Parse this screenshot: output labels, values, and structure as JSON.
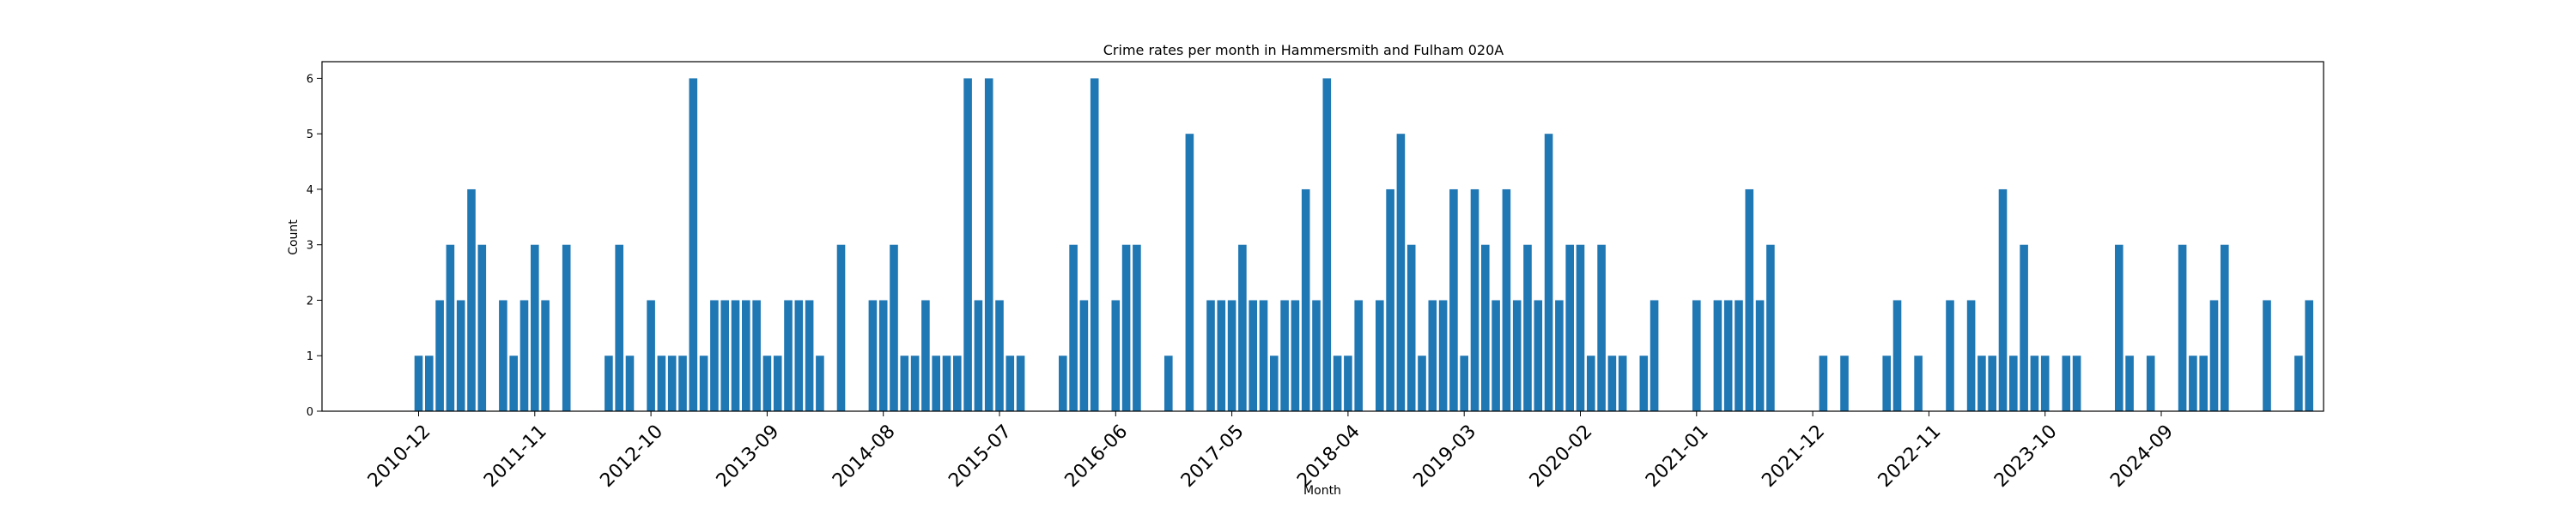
{
  "chart_data": {
    "type": "bar",
    "title": "Crime rates per month in Hammersmith and Fulham 020A",
    "xlabel": "Month",
    "ylabel": "Count",
    "ylim": [
      0,
      6.3
    ],
    "yticks": [
      0,
      1,
      2,
      3,
      4,
      5,
      6
    ],
    "xticks": [
      "2010-12",
      "2011-11",
      "2012-10",
      "2013-09",
      "2014-08",
      "2015-07",
      "2016-06",
      "2017-05",
      "2018-04",
      "2019-03",
      "2020-02",
      "2021-01",
      "2021-12",
      "2022-11",
      "2023-10",
      "2024-09"
    ],
    "start_month": "2010-12",
    "bar_color": "#1f77b4",
    "grid": false,
    "values": [
      1,
      1,
      2,
      3,
      2,
      4,
      3,
      0,
      2,
      1,
      2,
      3,
      2,
      0,
      3,
      0,
      0,
      0,
      1,
      3,
      1,
      0,
      2,
      1,
      1,
      1,
      6,
      1,
      2,
      2,
      2,
      2,
      2,
      1,
      1,
      2,
      2,
      2,
      1,
      0,
      3,
      0,
      0,
      2,
      2,
      3,
      1,
      1,
      2,
      1,
      1,
      1,
      6,
      2,
      6,
      2,
      1,
      1,
      0,
      0,
      0,
      1,
      3,
      2,
      6,
      0,
      2,
      3,
      3,
      0,
      0,
      1,
      0,
      5,
      0,
      2,
      2,
      2,
      3,
      2,
      2,
      1,
      2,
      2,
      4,
      2,
      6,
      1,
      1,
      2,
      0,
      2,
      4,
      5,
      3,
      1,
      2,
      2,
      4,
      1,
      4,
      3,
      2,
      4,
      2,
      3,
      2,
      5,
      2,
      3,
      3,
      1,
      3,
      1,
      1,
      0,
      1,
      2,
      0,
      0,
      0,
      2,
      0,
      2,
      2,
      2,
      4,
      2,
      3,
      0,
      0,
      0,
      0,
      1,
      0,
      1,
      0,
      0,
      0,
      1,
      2,
      0,
      1,
      0,
      0,
      2,
      0,
      2,
      1,
      1,
      4,
      1,
      3,
      1,
      1,
      0,
      1,
      1,
      0,
      0,
      0,
      3,
      1,
      0,
      1,
      0,
      0,
      3,
      1,
      1,
      2,
      3,
      0,
      0,
      0,
      2,
      0,
      0,
      1,
      2
    ]
  }
}
